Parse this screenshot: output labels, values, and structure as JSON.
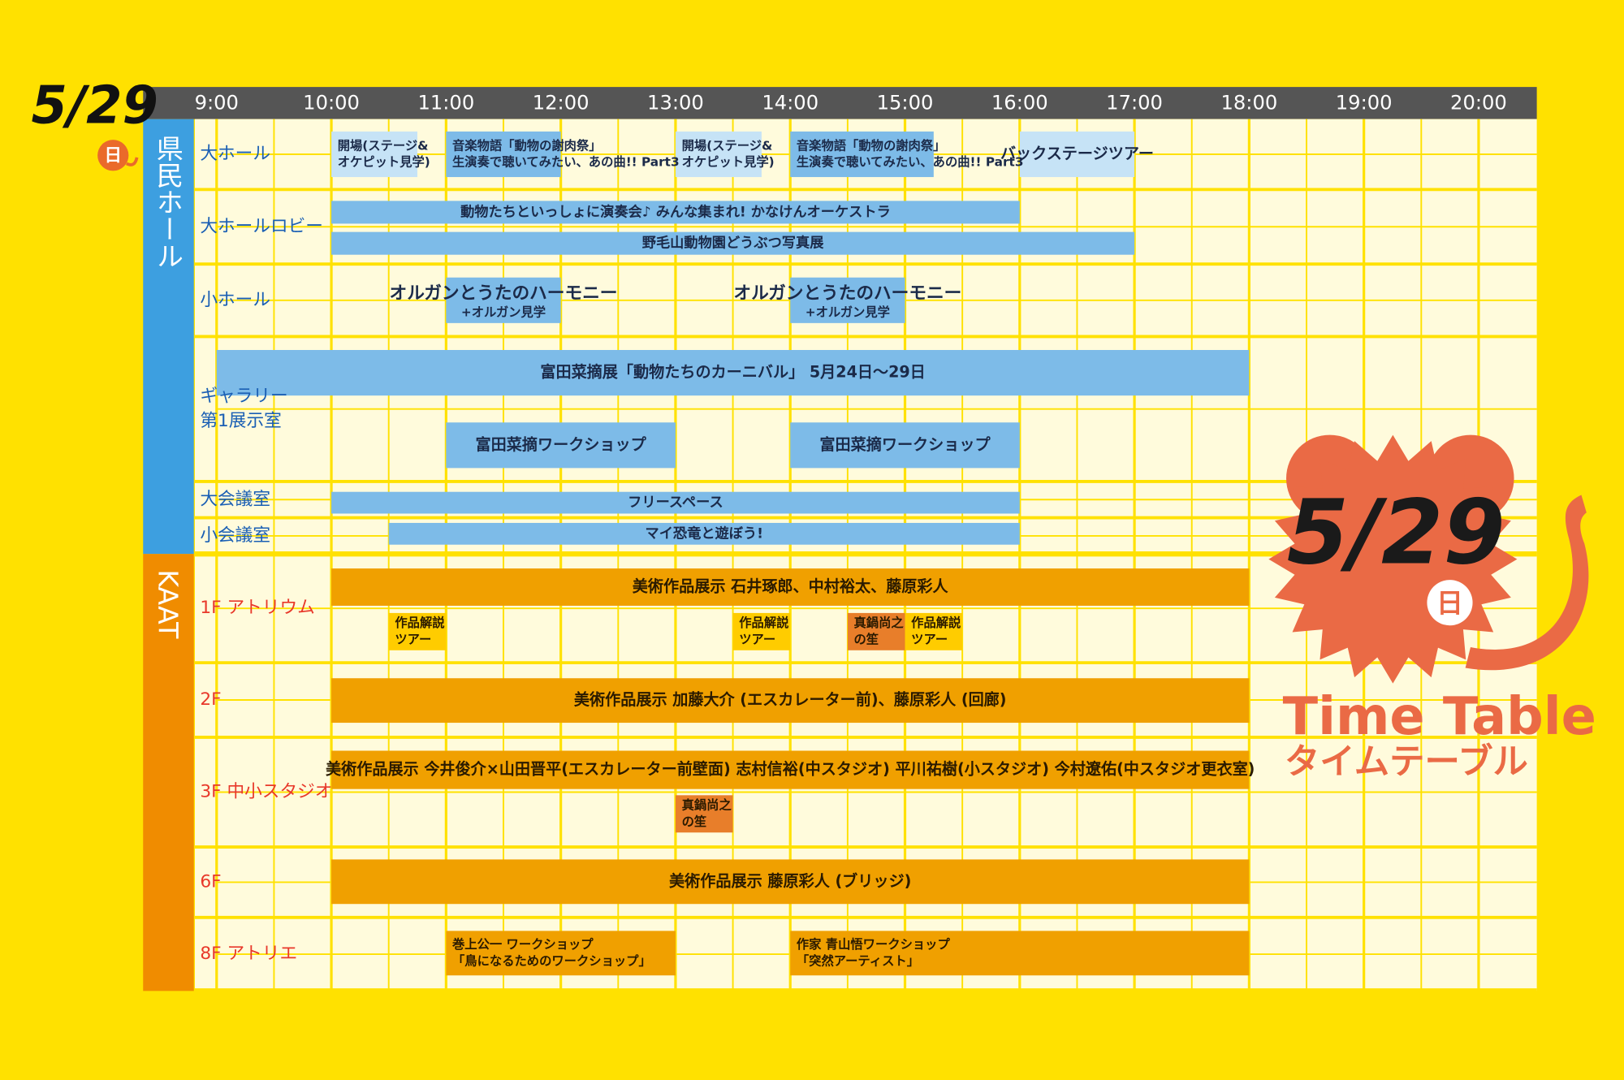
{
  "header": {
    "date": "5/29",
    "day": "日"
  },
  "logo": {
    "date": "5/29",
    "day": "日",
    "title": "Time Table",
    "subtitle": "タイムテーブル"
  },
  "times": [
    {
      "value": 9,
      "label": "9:00"
    },
    {
      "value": 10,
      "label": "10:00"
    },
    {
      "value": 11,
      "label": "11:00"
    },
    {
      "value": 12,
      "label": "12:00"
    },
    {
      "value": 13,
      "label": "13:00"
    },
    {
      "value": 14,
      "label": "14:00"
    },
    {
      "value": 15,
      "label": "15:00"
    },
    {
      "value": 16,
      "label": "16:00"
    },
    {
      "value": 17,
      "label": "17:00"
    },
    {
      "value": 18,
      "label": "18:00"
    },
    {
      "value": 19,
      "label": "19:00"
    },
    {
      "value": 20,
      "label": "20:00"
    }
  ],
  "sections": [
    {
      "label": "県民ホール",
      "color": "#3d9fe0",
      "label_color": "#1a5fb4",
      "text_color": "#1b2a49",
      "rows": [
        {
          "label": [
            "大ホール"
          ],
          "events": [
            {
              "start": 10,
              "end": 10.75,
              "color": "#c6e3f6",
              "lines": [
                "開場(ステージ&",
                "オケピット見学)"
              ]
            },
            {
              "start": 11,
              "end": 12,
              "color": "#7dbbe8",
              "lines": [
                "音楽物語「動物の謝肉祭」",
                "生演奏で聴いてみたい、あの曲!! Part3"
              ]
            },
            {
              "start": 13,
              "end": 13.75,
              "color": "#c6e3f6",
              "lines": [
                "開場(ステージ&",
                "オケピット見学)"
              ]
            },
            {
              "start": 14,
              "end": 15.25,
              "color": "#7dbbe8",
              "lines": [
                "音楽物語「動物の謝肉祭」",
                "生演奏で聴いてみたい、あの曲!! Part3"
              ]
            },
            {
              "start": 16,
              "end": 17,
              "color": "#c6e3f6",
              "lines": [
                "バックステージツアー"
              ]
            }
          ]
        },
        {
          "label": [
            "大ホールロビー"
          ],
          "events": [
            {
              "start": 10,
              "end": 16,
              "color": "#7dbbe8",
              "lines": [
                "動物たちといっしょに演奏会♪ みんな集まれ! かなけんオーケストラ"
              ]
            },
            {
              "start": 10,
              "end": 17,
              "color": "#7dbbe8",
              "lines": [
                "野毛山動物園どうぶつ写真展"
              ]
            }
          ]
        },
        {
          "label": [
            "小ホール"
          ],
          "events": [
            {
              "start": 11,
              "end": 12,
              "color": "#7dbbe8",
              "title": "オルガンとうたのハーモニー",
              "note": "+オルガン見学"
            },
            {
              "start": 14,
              "end": 15,
              "color": "#7dbbe8",
              "title": "オルガンとうたのハーモニー",
              "note": "+オルガン見学"
            }
          ]
        },
        {
          "label": [
            "ギャラリー",
            "第1展示室"
          ],
          "events": [
            {
              "start": 9,
              "end": 18,
              "color": "#7dbbe8",
              "lines": [
                "富田菜摘展「動物たちのカーニバル」 5月24日〜29日"
              ]
            },
            {
              "start": 11,
              "end": 13,
              "color": "#7dbbe8",
              "lines": [
                "富田菜摘ワークショップ"
              ]
            },
            {
              "start": 14,
              "end": 16,
              "color": "#7dbbe8",
              "lines": [
                "富田菜摘ワークショップ"
              ]
            }
          ]
        },
        {
          "label": [
            "大会議室"
          ],
          "events": [
            {
              "start": 10,
              "end": 16,
              "color": "#7dbbe8",
              "lines": [
                "フリースペース"
              ]
            }
          ]
        },
        {
          "label": [
            "小会議室"
          ],
          "events": [
            {
              "start": 10.5,
              "end": 16,
              "color": "#7dbbe8",
              "lines": [
                "マイ恐竜と遊ぼう!"
              ]
            }
          ]
        }
      ]
    },
    {
      "label": "KAAT",
      "color": "#f08c00",
      "label_color": "#e8382a",
      "text_color": "#2a1a00",
      "rows": [
        {
          "label": [
            "1F アトリウム"
          ],
          "events": [
            {
              "start": 10,
              "end": 18,
              "color": "#f0a000",
              "lines": [
                "美術作品展示 石井琢郎、中村裕太、藤原彩人"
              ]
            },
            {
              "start": 10.5,
              "end": 11,
              "color": "#ffcc00",
              "lines": [
                "作品解説",
                "ツアー"
              ]
            },
            {
              "start": 13.5,
              "end": 14,
              "color": "#ffcc00",
              "lines": [
                "作品解説",
                "ツアー"
              ]
            },
            {
              "start": 14.5,
              "end": 15,
              "color": "#e87e2a",
              "lines": [
                "真鍋尚之",
                "の笙"
              ]
            },
            {
              "start": 15,
              "end": 15.5,
              "color": "#ffcc00",
              "lines": [
                "作品解説",
                "ツアー"
              ]
            }
          ]
        },
        {
          "label": [
            "2F"
          ],
          "events": [
            {
              "start": 10,
              "end": 18,
              "color": "#f0a000",
              "lines": [
                "美術作品展示 加藤大介 (エスカレーター前)、藤原彩人 (回廊)"
              ]
            }
          ]
        },
        {
          "label": [
            "3F 中小スタジオ"
          ],
          "events": [
            {
              "start": 10,
              "end": 18,
              "color": "#f0a000",
              "lines": [
                "美術作品展示 今井俊介×山田晋平(エスカレーター前壁面) 志村信裕(中スタジオ) 平川祐樹(小スタジオ) 今村遼佑(中スタジオ更衣室)"
              ]
            },
            {
              "start": 13,
              "end": 13.5,
              "color": "#e87e2a",
              "lines": [
                "真鍋尚之",
                "の笙"
              ]
            }
          ]
        },
        {
          "label": [
            "6F"
          ],
          "events": [
            {
              "start": 10,
              "end": 18,
              "color": "#f0a000",
              "lines": [
                "美術作品展示 藤原彩人 (ブリッジ)"
              ]
            }
          ]
        },
        {
          "label": [
            "8F アトリエ"
          ],
          "events": [
            {
              "start": 11,
              "end": 13,
              "color": "#f0a000",
              "lines": [
                "巻上公一 ワークショップ",
                "「鳥になるためのワークショップ」"
              ]
            },
            {
              "start": 14,
              "end": 18,
              "color": "#f0a000",
              "lines": [
                "作家 青山悟ワークショップ",
                "「突然アーティスト」"
              ]
            }
          ]
        }
      ]
    }
  ]
}
